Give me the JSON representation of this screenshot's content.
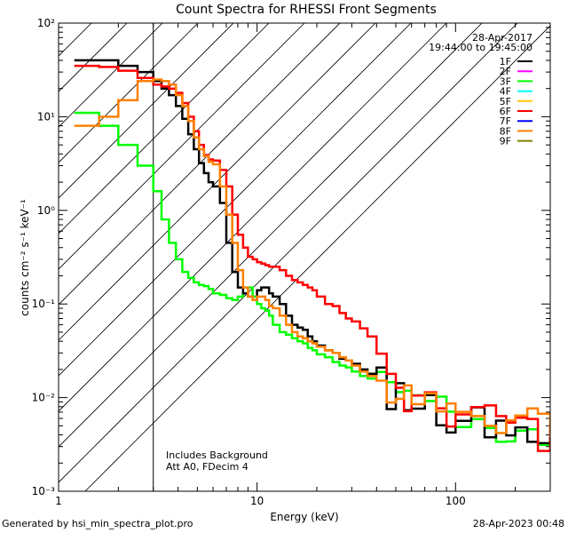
{
  "footer": {
    "generated_by": "Generated by hsi_min_spectra_plot.pro",
    "timestamp": "28-Apr-2023 00:48"
  },
  "chart_data": {
    "type": "line",
    "title": "Count Spectra for RHESSI Front Segments",
    "xlabel": "Energy (keV)",
    "ylabel": "counts cm⁻² s⁻¹ keV⁻¹",
    "xscale": "log",
    "yscale": "log",
    "xlim": [
      1,
      300
    ],
    "ylim": [
      0.001,
      100
    ],
    "x_major_ticks": [
      {
        "value": 1,
        "label": "1"
      },
      {
        "value": 10,
        "label": "10"
      },
      {
        "value": 100,
        "label": "100"
      }
    ],
    "y_major_ticks": [
      {
        "value": 0.001,
        "label": "10⁻³"
      },
      {
        "value": 0.01,
        "label": "10⁻²"
      },
      {
        "value": 0.1,
        "label": "10⁻¹"
      },
      {
        "value": 1,
        "label": "10⁰"
      },
      {
        "value": 10,
        "label": "10¹"
      },
      {
        "value": 100,
        "label": "10²"
      }
    ],
    "date": "28-Apr-2017",
    "time_range": "19:44:00 to 19:45:00",
    "annotations": [
      "Includes Background",
      "Att A0, FDecim 4"
    ],
    "shaded_region": {
      "x_from": 1,
      "x_to": 3
    },
    "legend_position": "top-right",
    "series": [
      {
        "name": "1F",
        "color": "#000000",
        "x": [
          1.2,
          1.6,
          2,
          2.5,
          3,
          3.3,
          3.6,
          3.9,
          4.2,
          4.5,
          4.8,
          5.1,
          5.4,
          5.7,
          6,
          6.5,
          7,
          7.5,
          8,
          8.5,
          9,
          9.5,
          10,
          10.5,
          11,
          11.5,
          12,
          13,
          14,
          15,
          16,
          17,
          18,
          19,
          20,
          22,
          24,
          26,
          28,
          30,
          33,
          36,
          40,
          45,
          50,
          55,
          60,
          70,
          80,
          90,
          100,
          120,
          140,
          160,
          180,
          200,
          230,
          260,
          300
        ],
        "y": [
          40,
          40,
          35,
          30,
          24,
          20,
          17,
          13,
          9.5,
          6.5,
          4.5,
          3.2,
          2.5,
          2.0,
          1.8,
          1.2,
          0.45,
          0.22,
          0.15,
          0.13,
          0.12,
          0.11,
          0.14,
          0.15,
          0.15,
          0.13,
          0.12,
          0.1,
          0.075,
          0.06,
          0.056,
          0.053,
          0.045,
          0.04,
          0.036,
          0.032,
          0.03,
          0.026,
          0.025,
          0.023,
          0.02,
          0.018,
          0.016,
          0.012,
          0.011,
          0.0095,
          0.01,
          0.0085,
          0.0075,
          0.0065,
          0.007,
          0.0058,
          0.006,
          0.0052,
          0.0053,
          0.0047,
          0.004,
          0.0042,
          0.0035
        ]
      },
      {
        "name": "2F",
        "color": "#ff00ff",
        "x": [],
        "y": []
      },
      {
        "name": "3F",
        "color": "#00ff00",
        "x": [
          1.2,
          1.6,
          2,
          2.5,
          3,
          3.3,
          3.6,
          3.9,
          4.2,
          4.5,
          4.8,
          5.1,
          5.4,
          5.7,
          6,
          6.5,
          7,
          7.5,
          8,
          8.5,
          9,
          9.5,
          10,
          10.5,
          11,
          11.5,
          12,
          13,
          14,
          15,
          16,
          17,
          18,
          19,
          20,
          22,
          24,
          26,
          28,
          30,
          33,
          36,
          40,
          45,
          50,
          55,
          60,
          70,
          80,
          90,
          100,
          120,
          140,
          160,
          180,
          200,
          230,
          260,
          300
        ],
        "y": [
          11,
          8,
          5,
          3,
          1.6,
          0.8,
          0.45,
          0.3,
          0.22,
          0.19,
          0.17,
          0.16,
          0.155,
          0.145,
          0.13,
          0.125,
          0.115,
          0.11,
          0.12,
          0.13,
          0.15,
          0.12,
          0.1,
          0.09,
          0.085,
          0.075,
          0.06,
          0.05,
          0.047,
          0.043,
          0.04,
          0.038,
          0.034,
          0.032,
          0.029,
          0.027,
          0.024,
          0.022,
          0.021,
          0.019,
          0.017,
          0.016,
          0.014,
          0.012,
          0.011,
          0.0095,
          0.0085,
          0.0095,
          0.008,
          0.0072,
          0.0068,
          0.006,
          0.0062,
          0.0055,
          0.005,
          0.0048,
          0.0046,
          0.0044,
          0.004
        ]
      },
      {
        "name": "4F",
        "color": "#00ffff",
        "x": [],
        "y": []
      },
      {
        "name": "5F",
        "color": "#ffc800",
        "x": [],
        "y": []
      },
      {
        "name": "6F",
        "color": "#ff0000",
        "x": [
          1.2,
          1.6,
          2,
          2.5,
          3,
          3.3,
          3.6,
          3.9,
          4.2,
          4.5,
          4.8,
          5.1,
          5.4,
          5.7,
          6,
          6.5,
          7,
          7.5,
          8,
          8.5,
          9,
          9.5,
          10,
          10.5,
          11,
          11.5,
          12,
          13,
          14,
          15,
          16,
          17,
          18,
          19,
          20,
          22,
          24,
          26,
          28,
          30,
          33,
          36,
          40,
          45,
          50,
          55,
          60,
          70,
          80,
          90,
          100,
          120,
          140,
          160,
          180,
          200,
          230,
          260,
          300
        ],
        "y": [
          35,
          34,
          31,
          26,
          22,
          21,
          20,
          18,
          14,
          10,
          7,
          5,
          3.9,
          3.5,
          3.4,
          2.7,
          1.8,
          0.9,
          0.55,
          0.4,
          0.32,
          0.3,
          0.28,
          0.27,
          0.26,
          0.25,
          0.25,
          0.23,
          0.2,
          0.18,
          0.17,
          0.16,
          0.15,
          0.14,
          0.12,
          0.1,
          0.095,
          0.08,
          0.07,
          0.065,
          0.055,
          0.045,
          0.03,
          0.02,
          0.012,
          0.0095,
          0.009,
          0.0085,
          0.0078,
          0.0072,
          0.0068,
          0.0065,
          0.006,
          0.0058,
          0.0055,
          0.0052,
          0.0048,
          0.0044,
          0.004
        ]
      },
      {
        "name": "7F",
        "color": "#0000ff",
        "x": [],
        "y": []
      },
      {
        "name": "8F",
        "color": "#ff8000",
        "x": [
          1.2,
          1.6,
          2,
          2.5,
          3,
          3.3,
          3.6,
          3.9,
          4.2,
          4.5,
          4.8,
          5.1,
          5.4,
          5.7,
          6,
          6.5,
          7,
          7.5,
          8,
          8.5,
          9,
          9.5,
          10,
          10.5,
          11,
          11.5,
          12,
          13,
          14,
          15,
          16,
          17,
          18,
          19,
          20,
          22,
          24,
          26,
          28,
          30,
          33,
          36,
          40,
          45,
          50,
          55,
          60,
          70,
          80,
          90,
          100,
          120,
          140,
          160,
          180,
          200,
          230,
          260,
          300
        ],
        "y": [
          8,
          10,
          15,
          24,
          25,
          24,
          22,
          17,
          13,
          9,
          6,
          4.5,
          3.8,
          3.3,
          3.1,
          1.8,
          0.9,
          0.45,
          0.23,
          0.15,
          0.12,
          0.11,
          0.12,
          0.12,
          0.11,
          0.095,
          0.09,
          0.075,
          0.06,
          0.05,
          0.045,
          0.043,
          0.04,
          0.038,
          0.035,
          0.032,
          0.03,
          0.027,
          0.025,
          0.022,
          0.019,
          0.017,
          0.015,
          0.013,
          0.012,
          0.011,
          0.01,
          0.0105,
          0.009,
          0.0085,
          0.008,
          0.0075,
          0.007,
          0.0068,
          0.0062,
          0.006,
          0.0055,
          0.005,
          0.0045
        ]
      },
      {
        "name": "9F",
        "color": "#808000",
        "x": [],
        "y": []
      }
    ]
  }
}
